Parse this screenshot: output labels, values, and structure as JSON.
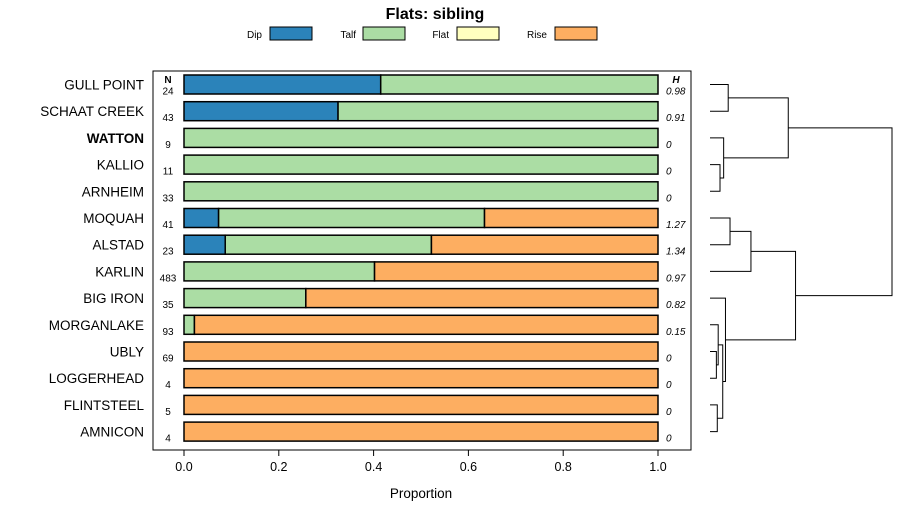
{
  "chart_data": {
    "type": "bar",
    "orientation": "horizontal-stacked",
    "title": "Flats: sibling",
    "xlabel": "Proportion",
    "xlim": [
      0,
      1
    ],
    "x_ticks": [
      "0.0",
      "0.2",
      "0.4",
      "0.6",
      "0.8",
      "1.0"
    ],
    "n_header": "N",
    "h_header": "H",
    "series": [
      {
        "name": "Dip",
        "color": "#2b83ba"
      },
      {
        "name": "Talf",
        "color": "#abdda4"
      },
      {
        "name": "Flat",
        "color": "#ffffbf"
      },
      {
        "name": "Rise",
        "color": "#fdae61"
      }
    ],
    "rows": [
      {
        "site": "GULL POINT",
        "n": "24",
        "h": "0.98",
        "bold": false,
        "values": [
          0.415,
          0.585,
          0,
          0
        ]
      },
      {
        "site": "SCHAAT CREEK",
        "n": "43",
        "h": "0.91",
        "bold": false,
        "values": [
          0.325,
          0.675,
          0,
          0
        ]
      },
      {
        "site": "WATTON",
        "n": "9",
        "h": "0",
        "bold": true,
        "values": [
          0,
          1,
          0,
          0
        ]
      },
      {
        "site": "KALLIO",
        "n": "11",
        "h": "0",
        "bold": false,
        "values": [
          0,
          1,
          0,
          0
        ]
      },
      {
        "site": "ARNHEIM",
        "n": "33",
        "h": "0",
        "bold": false,
        "values": [
          0,
          1,
          0,
          0
        ]
      },
      {
        "site": "MOQUAH",
        "n": "41",
        "h": "1.27",
        "bold": false,
        "values": [
          0.073,
          0.561,
          0,
          0.366
        ]
      },
      {
        "site": "ALSTAD",
        "n": "23",
        "h": "1.34",
        "bold": false,
        "values": [
          0.087,
          0.435,
          0,
          0.478
        ]
      },
      {
        "site": "KARLIN",
        "n": "483",
        "h": "0.97",
        "bold": false,
        "values": [
          0,
          0.402,
          0,
          0.598
        ]
      },
      {
        "site": "BIG IRON",
        "n": "35",
        "h": "0.82",
        "bold": false,
        "values": [
          0,
          0.257,
          0,
          0.743
        ]
      },
      {
        "site": "MORGANLAKE",
        "n": "93",
        "h": "0.15",
        "bold": false,
        "values": [
          0,
          0.022,
          0,
          0.978
        ]
      },
      {
        "site": "UBLY",
        "n": "69",
        "h": "0",
        "bold": false,
        "values": [
          0,
          0,
          0,
          1
        ]
      },
      {
        "site": "LOGGERHEAD",
        "n": "4",
        "h": "0",
        "bold": false,
        "values": [
          0,
          0,
          0,
          1
        ]
      },
      {
        "site": "FLINTSTEEL",
        "n": "5",
        "h": "0",
        "bold": false,
        "values": [
          0,
          0,
          0,
          1
        ]
      },
      {
        "site": "AMNICON",
        "n": "4",
        "h": "0",
        "bold": false,
        "values": [
          0,
          0,
          0,
          1
        ]
      }
    ],
    "dendrogram": {
      "description": "hierarchical clustering of sites (rows indexed top to bottom)",
      "merges": [
        {
          "id": "A",
          "left": 0,
          "right": 1,
          "height": 0.1
        },
        {
          "id": "C",
          "left": 3,
          "right": 4,
          "height": 0.055
        },
        {
          "id": "D",
          "left": 2,
          "right": "C",
          "height": 0.075
        },
        {
          "id": "E",
          "left": "A",
          "right": "D",
          "height": 0.43
        },
        {
          "id": "F",
          "left": 5,
          "right": 6,
          "height": 0.11
        },
        {
          "id": "G",
          "left": "F",
          "right": 7,
          "height": 0.225
        },
        {
          "id": "I",
          "left": 10,
          "right": 11,
          "height": 0.035
        },
        {
          "id": "J",
          "left": 9,
          "right": "I",
          "height": 0.045
        },
        {
          "id": "K",
          "left": 12,
          "right": 13,
          "height": 0.04
        },
        {
          "id": "L",
          "left": "J",
          "right": "K",
          "height": 0.07
        },
        {
          "id": "M",
          "left": 8,
          "right": "L",
          "height": 0.085
        },
        {
          "id": "N",
          "left": "G",
          "right": "M",
          "height": 0.47
        },
        {
          "id": "O",
          "left": "E",
          "right": "N",
          "height": 1.0
        }
      ]
    }
  }
}
